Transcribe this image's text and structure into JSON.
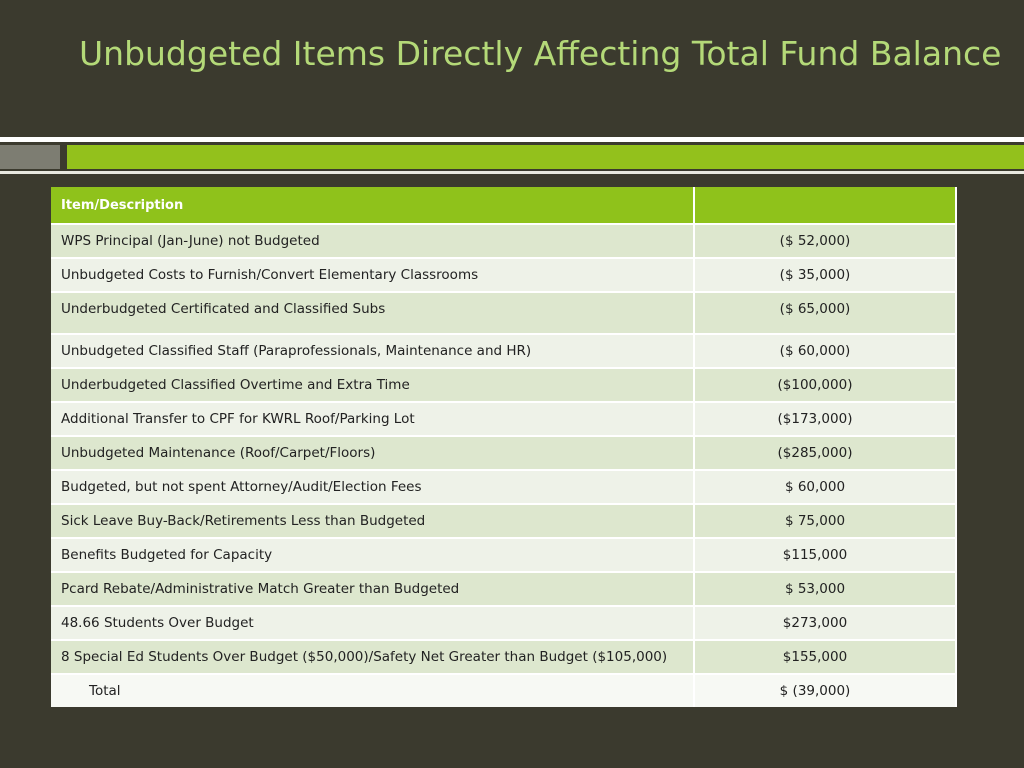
{
  "title": "Unbudgeted Items Directly Affecting Total Fund Balance",
  "table": {
    "headers": [
      "Item/Description",
      ""
    ],
    "rows": [
      [
        "WPS Principal (Jan-June) not Budgeted",
        "($  52,000)"
      ],
      [
        "Unbudgeted Costs to Furnish/Convert Elementary Classrooms",
        "($  35,000)"
      ],
      [
        "Underbudgeted Certificated and Classified Subs",
        "($  65,000)"
      ],
      [
        "Unbudgeted Classified Staff (Paraprofessionals, Maintenance and HR)",
        "($  60,000)"
      ],
      [
        "Underbudgeted Classified Overtime and Extra Time",
        "($100,000)"
      ],
      [
        "Additional Transfer to CPF for KWRL Roof/Parking Lot",
        "($173,000)"
      ],
      [
        "Unbudgeted Maintenance (Roof/Carpet/Floors)",
        "($285,000)"
      ],
      [
        "Budgeted, but not spent Attorney/Audit/Election Fees",
        "$  60,000"
      ],
      [
        "Sick Leave Buy-Back/Retirements Less than Budgeted",
        "$  75,000"
      ],
      [
        "Benefits Budgeted for Capacity",
        "$115,000"
      ],
      [
        "Pcard Rebate/Administrative Match Greater than Budgeted",
        "$  53,000"
      ],
      [
        "48.66 Students Over Budget",
        "$273,000"
      ],
      [
        "8 Special Ed Students Over Budget ($50,000)/Safety Net Greater than Budget ($105,000)",
        "$155,000"
      ]
    ],
    "total_label": "Total",
    "total_value": "$ (39,000)"
  }
}
